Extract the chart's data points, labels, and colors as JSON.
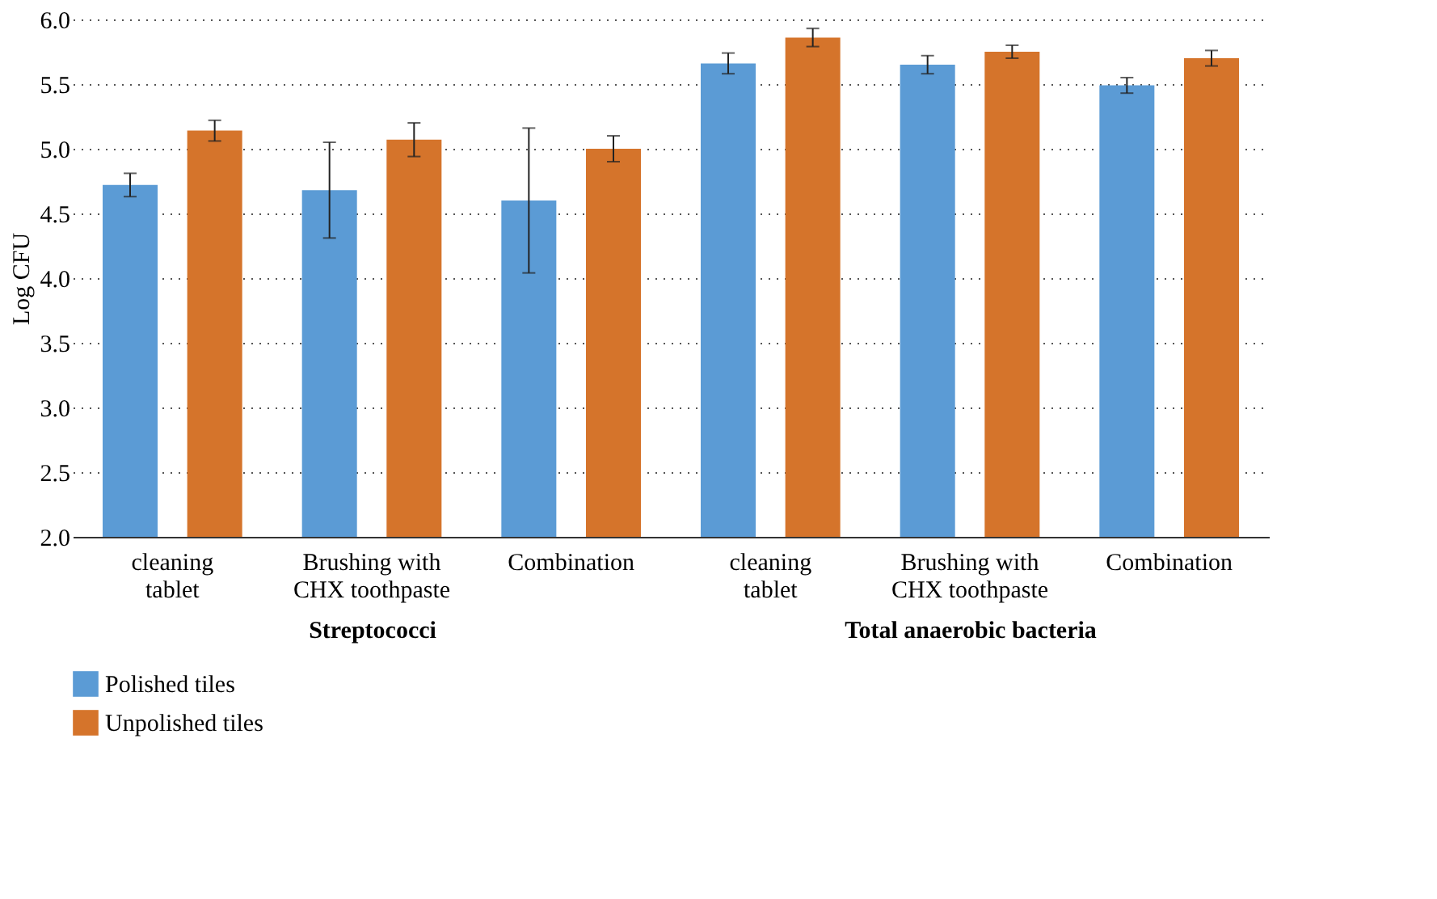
{
  "chart_data": [
    {
      "type": "bar",
      "ylabel": "Log CFU",
      "xlabel": "Streptococci",
      "categories": [
        "cleaning tablet",
        "Brushing with CHX toothpaste",
        "Combination"
      ],
      "series": [
        {
          "name": "Polished tiles",
          "color": "#5b9bd5",
          "values": [
            4.72,
            4.68,
            4.6
          ],
          "errors": [
            0.09,
            0.37,
            0.56
          ]
        },
        {
          "name": "Unpolished tiles",
          "color": "#d5742b",
          "values": [
            5.14,
            5.07,
            5.0
          ],
          "errors": [
            0.08,
            0.13,
            0.1
          ]
        }
      ],
      "ylim": [
        2,
        6
      ],
      "yticks": [
        {
          "value": 2,
          "label": "2.0"
        },
        2.5,
        {
          "value": 3,
          "label": "3.0"
        },
        3.5,
        {
          "value": 4,
          "label": "4.0"
        },
        4.5,
        {
          "value": 5,
          "label": "5.0"
        },
        5.5,
        {
          "value": 6,
          "label": "6.0"
        }
      ],
      "grid": "y",
      "legend": "bottom"
    },
    {
      "type": "bar",
      "xlabel": "Total anaerobic bacteria",
      "categories": [
        "cleaning tablet",
        "Brushing with CHX toothpaste",
        "Combination"
      ],
      "series": [
        {
          "name": "Polished tiles",
          "color": "#5b9bd5",
          "values": [
            5.66,
            5.65,
            5.49
          ],
          "errors": [
            0.08,
            0.07,
            0.06
          ]
        },
        {
          "name": "Unpolished tiles",
          "color": "#d5742b",
          "values": [
            5.86,
            5.75,
            5.7
          ],
          "errors": [
            0.07,
            0.05,
            0.06
          ]
        }
      ],
      "ylim": [
        2,
        6
      ],
      "yticks": [
        2,
        2.5,
        3,
        3.5,
        4,
        4.5,
        5,
        5.5,
        6
      ],
      "grid": "y",
      "legend": false,
      "tick_labels": "x"
    }
  ]
}
